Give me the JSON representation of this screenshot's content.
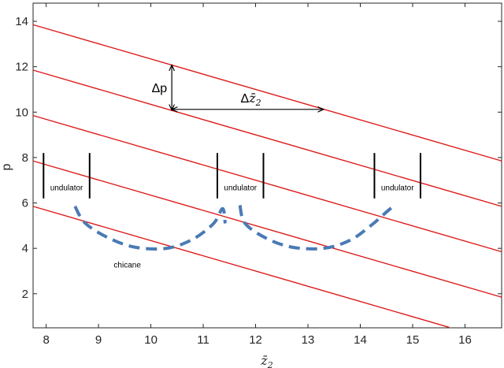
{
  "chart_data": {
    "type": "line",
    "title": "",
    "xlabel": "z̄",
    "xlabel_sub": "2",
    "ylabel": "p",
    "xlim": [
      7.75,
      16.7
    ],
    "ylim": [
      0.5,
      14.8
    ],
    "xticks": [
      8,
      9,
      10,
      11,
      12,
      13,
      14,
      15,
      16
    ],
    "yticks": [
      2,
      4,
      6,
      8,
      10,
      12,
      14
    ],
    "grid": false,
    "colors": {
      "lines": "#dd1c1c",
      "chicane": "#4a7ab5",
      "bars": "#000000",
      "axis": "#262626"
    },
    "series": [
      {
        "x": [
          7.75,
          16.7
        ],
        "y": [
          13.85,
          7.85
        ]
      },
      {
        "x": [
          7.75,
          16.7
        ],
        "y": [
          11.85,
          5.85
        ]
      },
      {
        "x": [
          7.75,
          16.7
        ],
        "y": [
          9.85,
          3.85
        ]
      },
      {
        "x": [
          7.75,
          16.7
        ],
        "y": [
          7.85,
          1.85
        ]
      },
      {
        "x": [
          7.75,
          15.7
        ],
        "y": [
          5.85,
          0.52
        ]
      }
    ],
    "undulators": [
      {
        "label": "undulator",
        "x_start": 7.95,
        "x_end": 8.83,
        "y_low": 6.2,
        "y_high": 8.2
      },
      {
        "label": "undulator",
        "x_start": 11.27,
        "x_end": 12.15,
        "y_low": 6.2,
        "y_high": 8.2
      },
      {
        "label": "undulator",
        "x_start": 14.27,
        "x_end": 15.15,
        "y_low": 6.2,
        "y_high": 8.2
      }
    ],
    "chicanes": [
      {
        "x": [
          8.55,
          8.75,
          9.2,
          9.7,
          10.3,
          10.8,
          11.2,
          11.37,
          11.42
        ],
        "y": [
          5.85,
          5.1,
          4.45,
          4.05,
          4.0,
          4.4,
          5.1,
          5.75,
          5.1
        ]
      },
      {
        "x": [
          11.7,
          11.8,
          12.2,
          12.7,
          13.3,
          13.8,
          14.2,
          14.5,
          14.6
        ],
        "y": [
          5.9,
          5.1,
          4.45,
          4.05,
          4.0,
          4.35,
          5.0,
          5.6,
          5.8
        ]
      }
    ],
    "chicane_label": "chicane",
    "chicane_label_pos": [
      9.55,
      3.15
    ],
    "delta_p": {
      "label": "Δp",
      "x": 10.4,
      "y_top": 12.08,
      "y_bottom": 10.08
    },
    "delta_z": {
      "label": "Δ",
      "label_math": "z̄",
      "label_sub": "2",
      "y": 10.12,
      "x_start": 10.4,
      "x_end": 13.3
    }
  }
}
